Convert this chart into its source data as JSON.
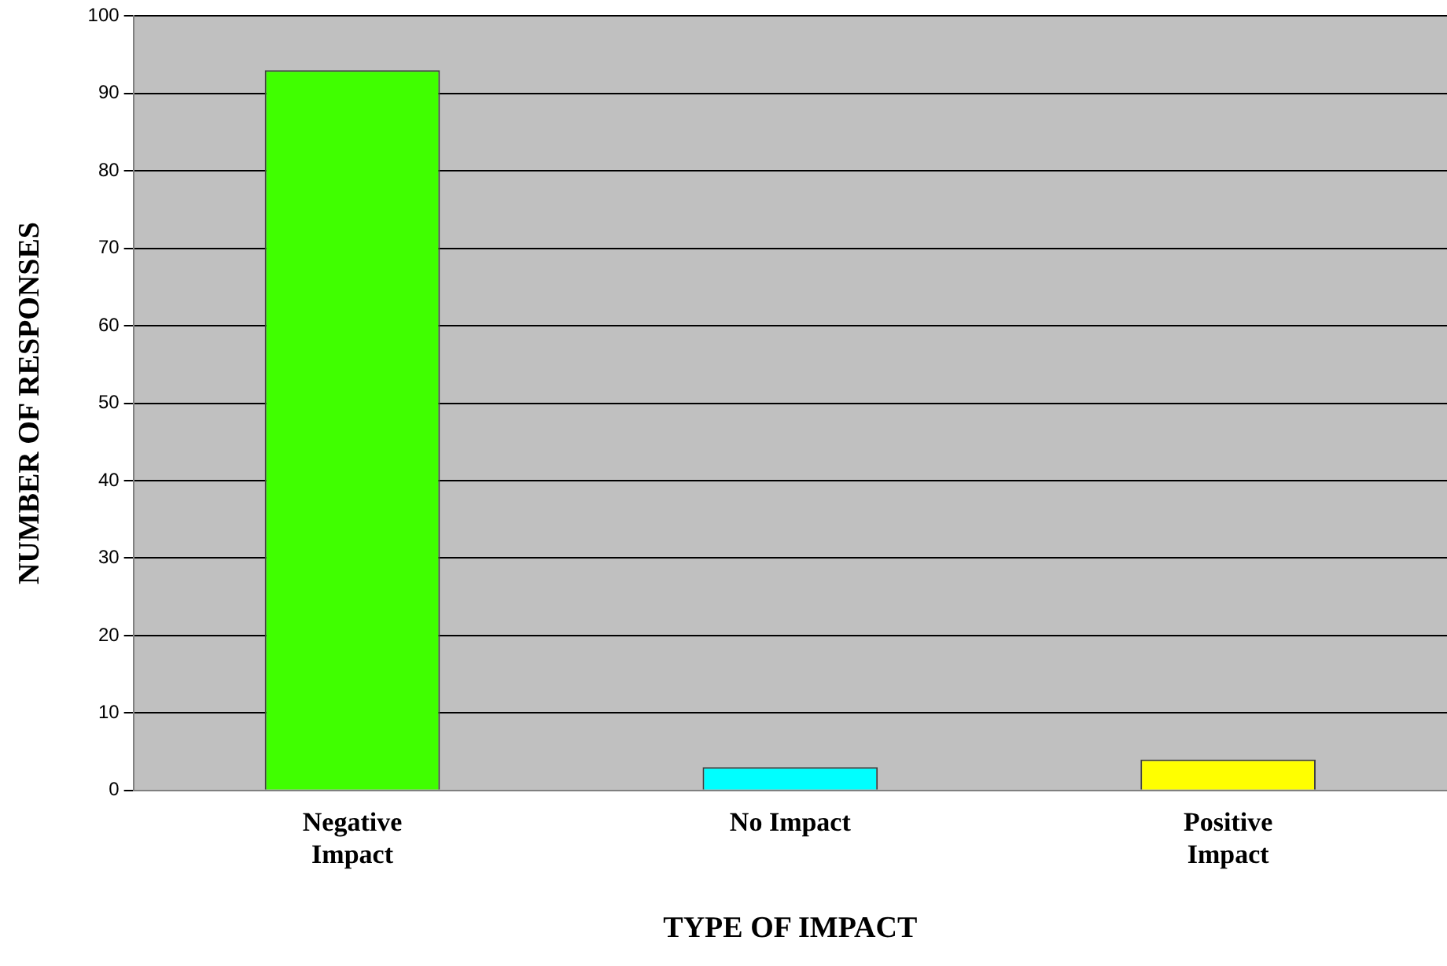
{
  "chart_data": {
    "type": "bar",
    "xlabel": "TYPE OF IMPACT",
    "ylabel": "NUMBER OF RESPONSES",
    "categories": [
      "Negative Impact",
      "No Impact",
      "Positive Impact"
    ],
    "values": [
      93,
      3,
      4
    ],
    "colors": [
      "#40ff00",
      "#00ffff",
      "#ffff00"
    ],
    "ylim": [
      0,
      100
    ],
    "yticks": [
      0,
      10,
      20,
      30,
      40,
      50,
      60,
      70,
      80,
      90,
      100
    ],
    "grid": "y",
    "legend": false
  }
}
